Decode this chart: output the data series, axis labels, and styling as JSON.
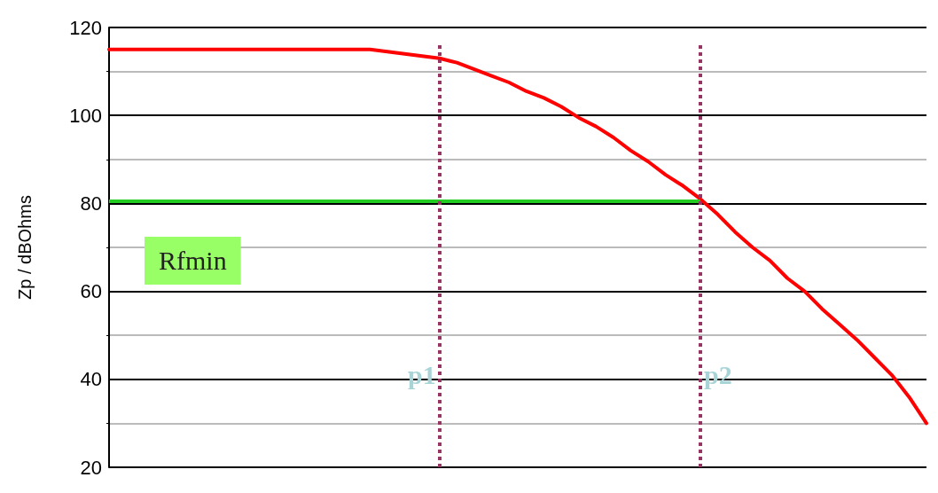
{
  "chart_data": {
    "type": "line",
    "ylabel": "Zp / dBOhms",
    "categories": [
      null,
      null,
      null,
      null,
      null,
      null,
      null,
      null,
      null,
      null,
      null,
      null,
      null,
      null,
      null,
      null,
      null,
      null,
      null,
      null,
      null,
      null,
      null,
      null,
      null,
      null,
      null,
      null,
      null,
      null,
      null,
      null,
      null,
      null,
      null,
      null,
      null,
      null,
      null,
      null,
      null,
      null,
      null,
      null,
      null,
      null,
      null,
      null
    ],
    "series": [
      {
        "color": "#ff0000",
        "values": [
          115,
          115,
          115,
          115,
          115,
          115,
          115,
          115,
          115,
          115,
          115,
          115,
          115,
          115,
          115,
          115,
          114.5,
          114,
          113.5,
          113,
          112,
          110.5,
          109,
          107.5,
          105.5,
          104,
          102,
          99.5,
          97.5,
          95,
          92,
          89.5,
          86.5,
          84,
          81,
          77.5,
          73.5,
          70,
          67,
          63,
          60,
          56,
          52.5,
          49,
          45,
          41,
          36,
          30
        ]
      }
    ],
    "ylim": [
      20,
      120
    ],
    "yticks": [
      20,
      40,
      60,
      80,
      100,
      120
    ],
    "grid": "y",
    "tick_labels": "y",
    "marker": "none",
    "line_style": "solid",
    "ref_lines": [
      {
        "axis": "y",
        "value": 80.5,
        "label": "Rfmin",
        "color": "#22cc22",
        "line_style": "solid"
      }
    ],
    "annotations": [
      "p1",
      "p2"
    ]
  }
}
